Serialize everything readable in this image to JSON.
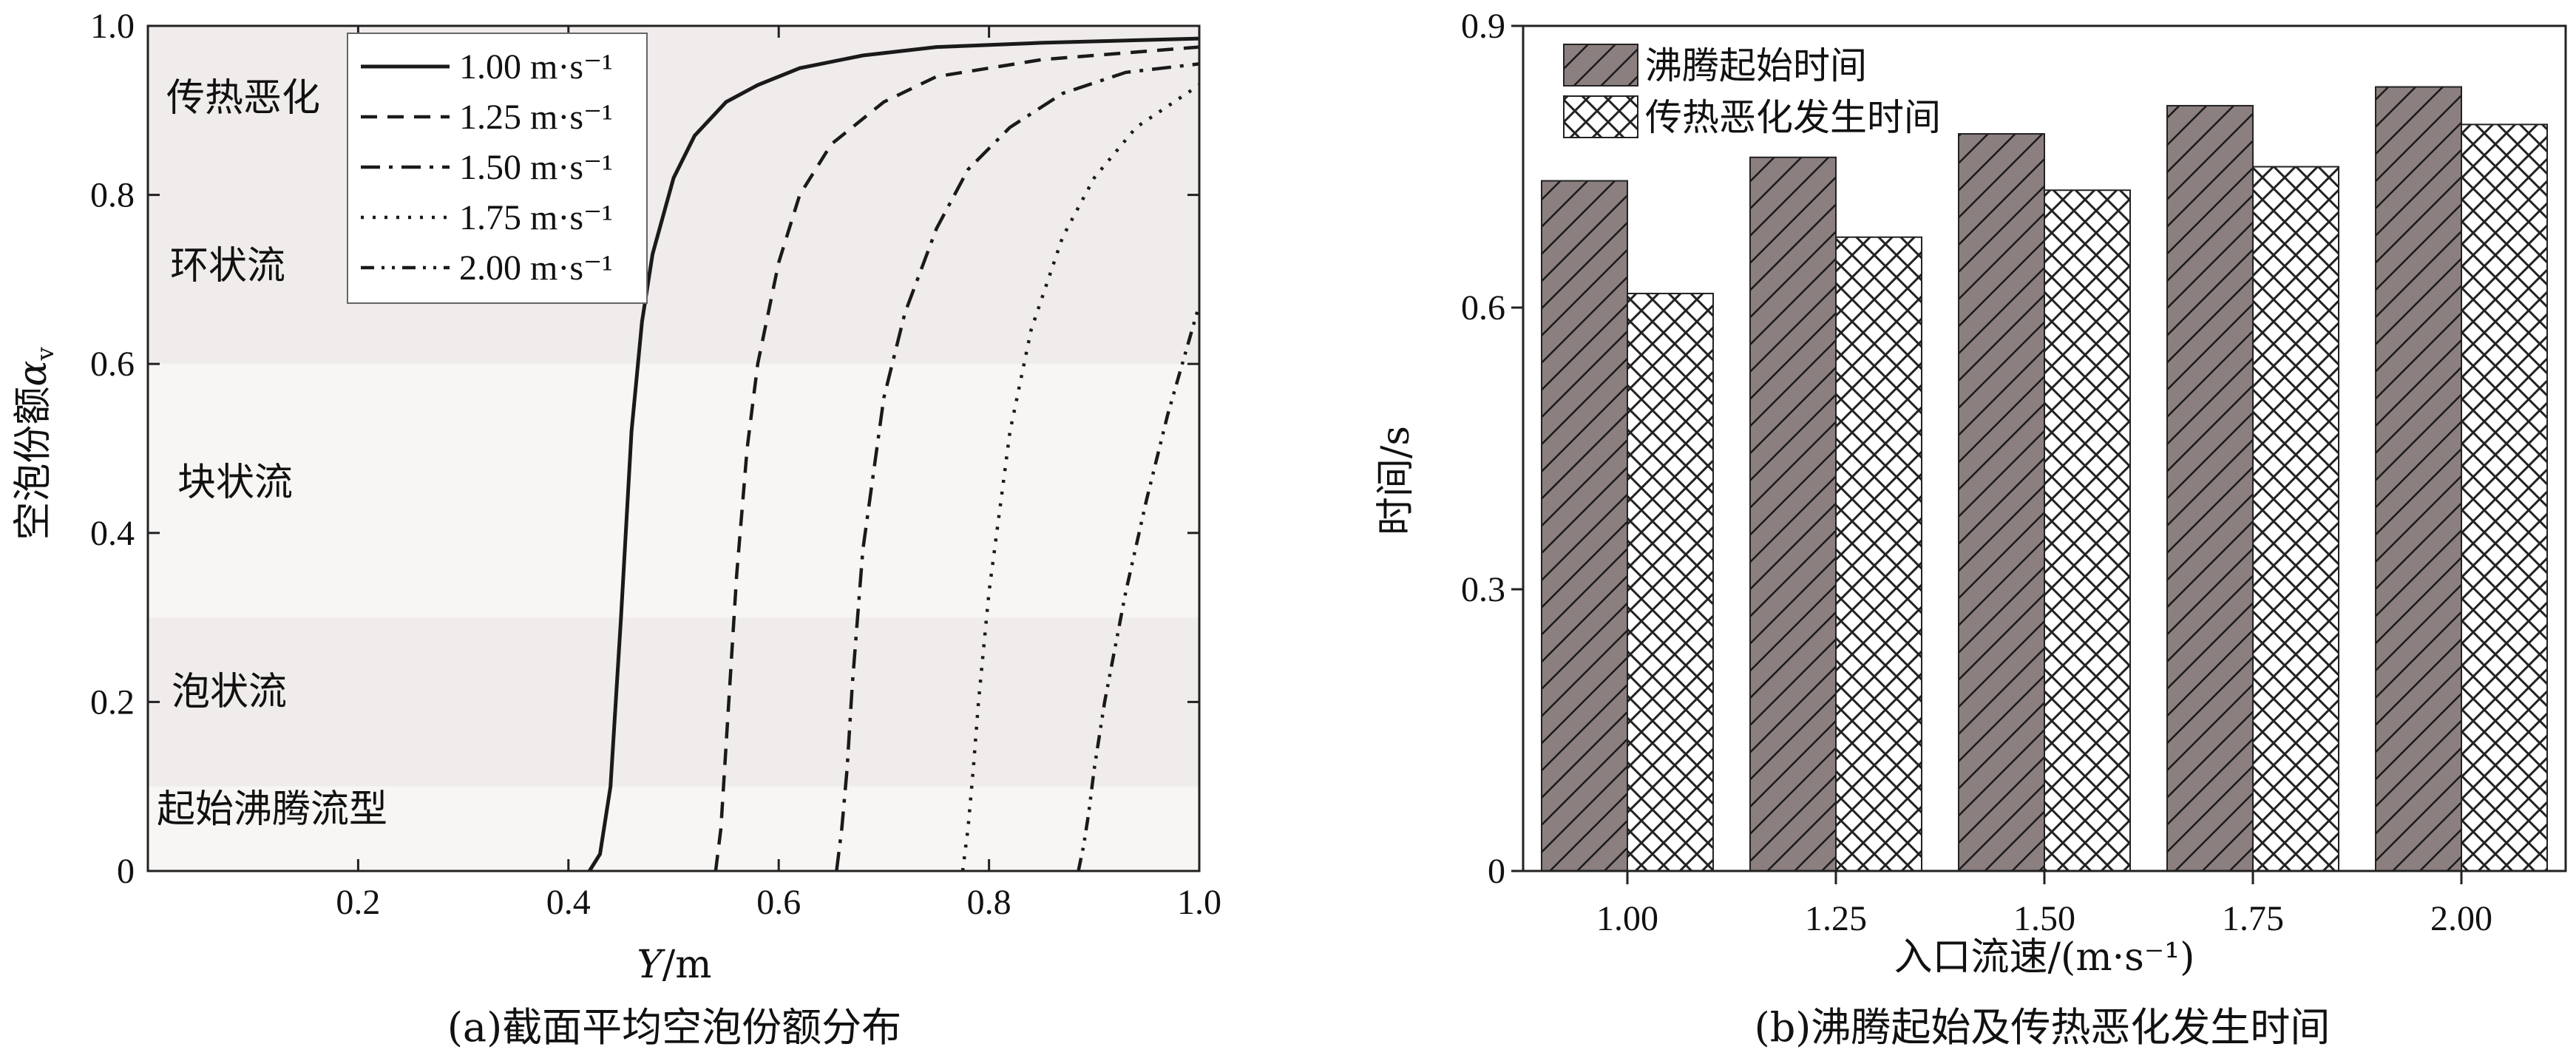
{
  "chart_data": [
    {
      "type": "line",
      "caption": "(a)截面平均空泡份额分布",
      "xlabel": "Y/m",
      "ylabel": "空泡份额α",
      "ylabel_sub": "v",
      "xlim": [
        0,
        1.0
      ],
      "ylim": [
        0,
        1.0
      ],
      "xticks": [
        "0.2",
        "0.4",
        "0.6",
        "0.8",
        "1.0"
      ],
      "yticks": [
        "0",
        "0.2",
        "0.4",
        "0.6",
        "0.8",
        "1.0"
      ],
      "regions": [
        {
          "label": "起始沸腾流型",
          "range": [
            0,
            0.1
          ],
          "color": "#f8f6f4"
        },
        {
          "label": "泡状流",
          "range": [
            0.1,
            0.3
          ],
          "color": "#efeceb"
        },
        {
          "label": "块状流",
          "range": [
            0.3,
            0.6
          ],
          "color": "#f8f6f4"
        },
        {
          "label": "环状流",
          "range": [
            0.6,
            0.8
          ],
          "color": "#efeceb"
        },
        {
          "label": "传热恶化",
          "range": [
            0.8,
            1.0
          ],
          "color": "#efeceb"
        }
      ],
      "legend_position": "top-left",
      "series": [
        {
          "name": "1.00 m·s⁻¹",
          "style": "solid",
          "x": [
            0.42,
            0.43,
            0.44,
            0.45,
            0.46,
            0.47,
            0.48,
            0.5,
            0.52,
            0.55,
            0.58,
            0.62,
            0.68,
            0.75,
            0.85,
            1.0
          ],
          "y": [
            0,
            0.02,
            0.1,
            0.3,
            0.52,
            0.65,
            0.73,
            0.82,
            0.87,
            0.91,
            0.93,
            0.95,
            0.965,
            0.975,
            0.98,
            0.985
          ]
        },
        {
          "name": "1.25 m·s⁻¹",
          "style": "dashed",
          "x": [
            0.54,
            0.545,
            0.55,
            0.56,
            0.57,
            0.58,
            0.6,
            0.62,
            0.65,
            0.7,
            0.75,
            0.85,
            1.0
          ],
          "y": [
            0,
            0.05,
            0.15,
            0.35,
            0.5,
            0.6,
            0.72,
            0.8,
            0.86,
            0.91,
            0.94,
            0.96,
            0.975
          ]
        },
        {
          "name": "1.50 m·s⁻¹",
          "style": "dashdot",
          "x": [
            0.655,
            0.66,
            0.665,
            0.67,
            0.68,
            0.7,
            0.72,
            0.75,
            0.78,
            0.82,
            0.87,
            0.93,
            1.0
          ],
          "y": [
            0,
            0.05,
            0.12,
            0.22,
            0.38,
            0.56,
            0.66,
            0.76,
            0.83,
            0.88,
            0.92,
            0.945,
            0.955
          ]
        },
        {
          "name": "1.75 m·s⁻¹",
          "style": "dotted",
          "x": [
            0.775,
            0.78,
            0.785,
            0.79,
            0.8,
            0.82,
            0.84,
            0.87,
            0.9,
            0.94,
            1.0
          ],
          "y": [
            0,
            0.05,
            0.12,
            0.2,
            0.33,
            0.52,
            0.64,
            0.75,
            0.82,
            0.88,
            0.93
          ]
        },
        {
          "name": "2.00 m·s⁻¹",
          "style": "dashdotdot",
          "x": [
            0.885,
            0.89,
            0.895,
            0.9,
            0.91,
            0.93,
            0.95,
            0.97,
            1.0
          ],
          "y": [
            0,
            0.03,
            0.07,
            0.12,
            0.2,
            0.33,
            0.44,
            0.54,
            0.67
          ]
        }
      ]
    },
    {
      "type": "bar",
      "caption": "(b)沸腾起始及传热恶化发生时间",
      "xlabel": "入口流速/(m·s⁻¹)",
      "ylabel": "时间/s",
      "ylim": [
        0,
        0.9
      ],
      "yticks": [
        "0",
        "0.3",
        "0.6",
        "0.9"
      ],
      "categories": [
        "1.00",
        "1.25",
        "1.50",
        "1.75",
        "2.00"
      ],
      "legend_position": "top-left",
      "series": [
        {
          "name": "沸腾起始时间",
          "pattern": "diagonal-hatch",
          "color": "#8a7d7d",
          "values": [
            0.735,
            0.76,
            0.785,
            0.815,
            0.835
          ]
        },
        {
          "name": "传热恶化发生时间",
          "pattern": "crosshatch",
          "color": "#ffffff",
          "values": [
            0.615,
            0.675,
            0.725,
            0.75,
            0.795
          ]
        }
      ]
    }
  ]
}
